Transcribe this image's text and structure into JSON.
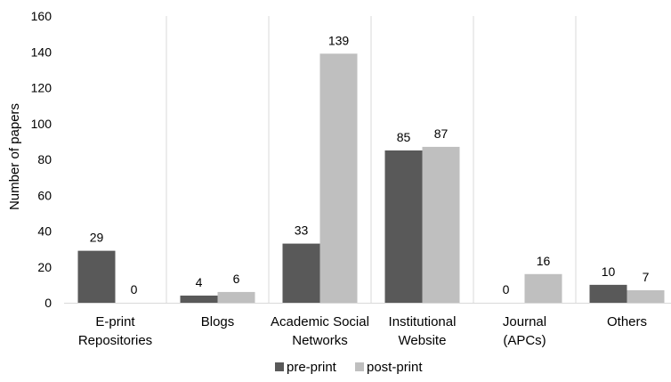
{
  "chart_data": {
    "type": "bar",
    "title": "",
    "xlabel": "",
    "ylabel": "Number of papers",
    "ylim": [
      0,
      160
    ],
    "yticks": [
      0,
      20,
      40,
      60,
      80,
      100,
      120,
      140,
      160
    ],
    "grid": false,
    "category_separators": true,
    "legend_position": "bottom",
    "categories": [
      [
        "E-print",
        "Repositories"
      ],
      [
        "Blogs"
      ],
      [
        "Academic Social",
        "Networks"
      ],
      [
        "Institutional",
        "Website"
      ],
      [
        "Journal",
        "(APCs)"
      ],
      [
        "Others"
      ]
    ],
    "series": [
      {
        "name": "pre-print",
        "color": "#595959",
        "values": [
          29,
          4,
          33,
          85,
          0,
          10
        ]
      },
      {
        "name": "post-print",
        "color": "#bfbfbf",
        "values": [
          0,
          6,
          139,
          87,
          16,
          7
        ]
      }
    ]
  }
}
